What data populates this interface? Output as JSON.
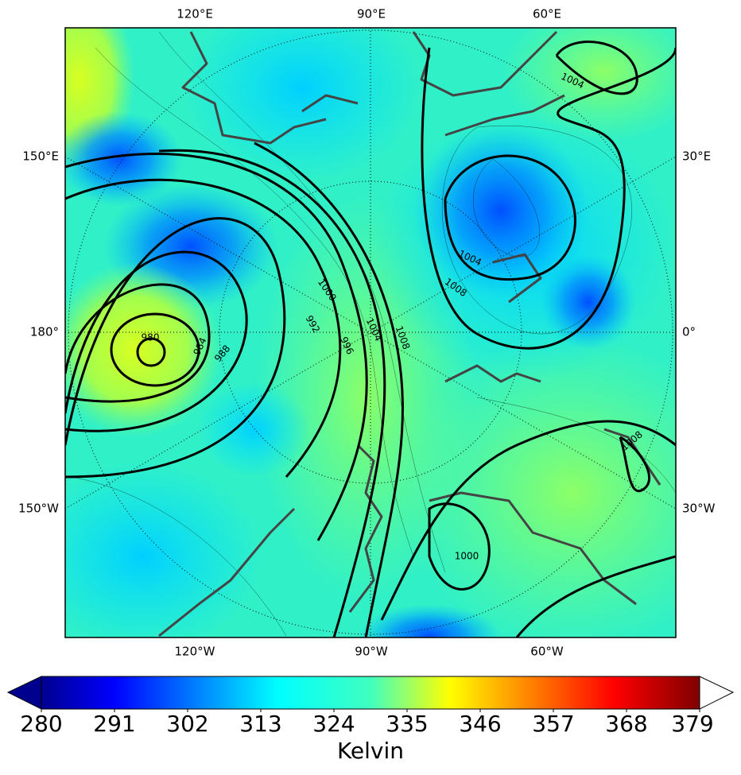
{
  "map": {
    "lon_labels": {
      "top": [
        "120°E",
        "90°E",
        "60°E"
      ],
      "left": [
        "150°E",
        "180°",
        "150°W"
      ],
      "right": [
        "30°E",
        "0°",
        "30°W"
      ],
      "bottom": [
        "120°W",
        "90°W",
        "60°W"
      ]
    },
    "contour_labels": [
      "980",
      "984",
      "988",
      "992",
      "996",
      "1000",
      "1004",
      "1008",
      "1004",
      "1008",
      "1000",
      "1004",
      "1008"
    ]
  },
  "colorbar": {
    "label": "Kelvin",
    "ticks": [
      280,
      291,
      302,
      313,
      324,
      335,
      346,
      357,
      368,
      379
    ]
  }
}
